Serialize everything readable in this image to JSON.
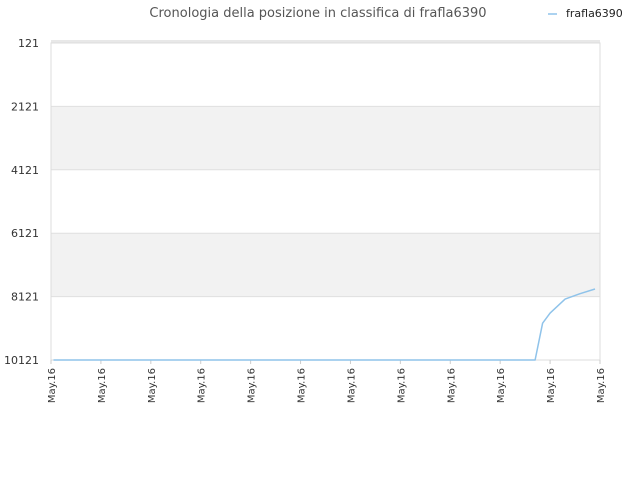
{
  "chart_data": {
    "type": "line",
    "title": "Cronologia della posizione in classifica di frafla6390",
    "legend": {
      "placement": "top-right",
      "entries": [
        "frafla6390"
      ]
    },
    "y_axis": {
      "reversed": true,
      "range": [
        121,
        10121
      ],
      "ticks": [
        "121",
        "2121",
        "4121",
        "6121",
        "8121",
        "10121"
      ]
    },
    "x_axis": {
      "ticks": [
        "May.16",
        "May.16",
        "May.16",
        "May.16",
        "May.16",
        "May.16",
        "May.16",
        "May.16",
        "May.16",
        "May.16",
        "May.16",
        "May.16"
      ]
    },
    "grid": true,
    "series": [
      {
        "name": "frafla6390",
        "color": "#8fc3ea",
        "x": [
          0.05,
          0.5,
          1,
          2,
          3,
          4,
          5,
          6,
          7,
          8,
          9,
          9.7,
          9.85,
          10,
          10.3,
          10.6,
          10.9
        ],
        "y": [
          10121,
          10121,
          10121,
          10121,
          10121,
          10121,
          10121,
          10121,
          10121,
          10121,
          10121,
          10121,
          8960,
          8640,
          8200,
          8030,
          7880
        ]
      }
    ]
  }
}
